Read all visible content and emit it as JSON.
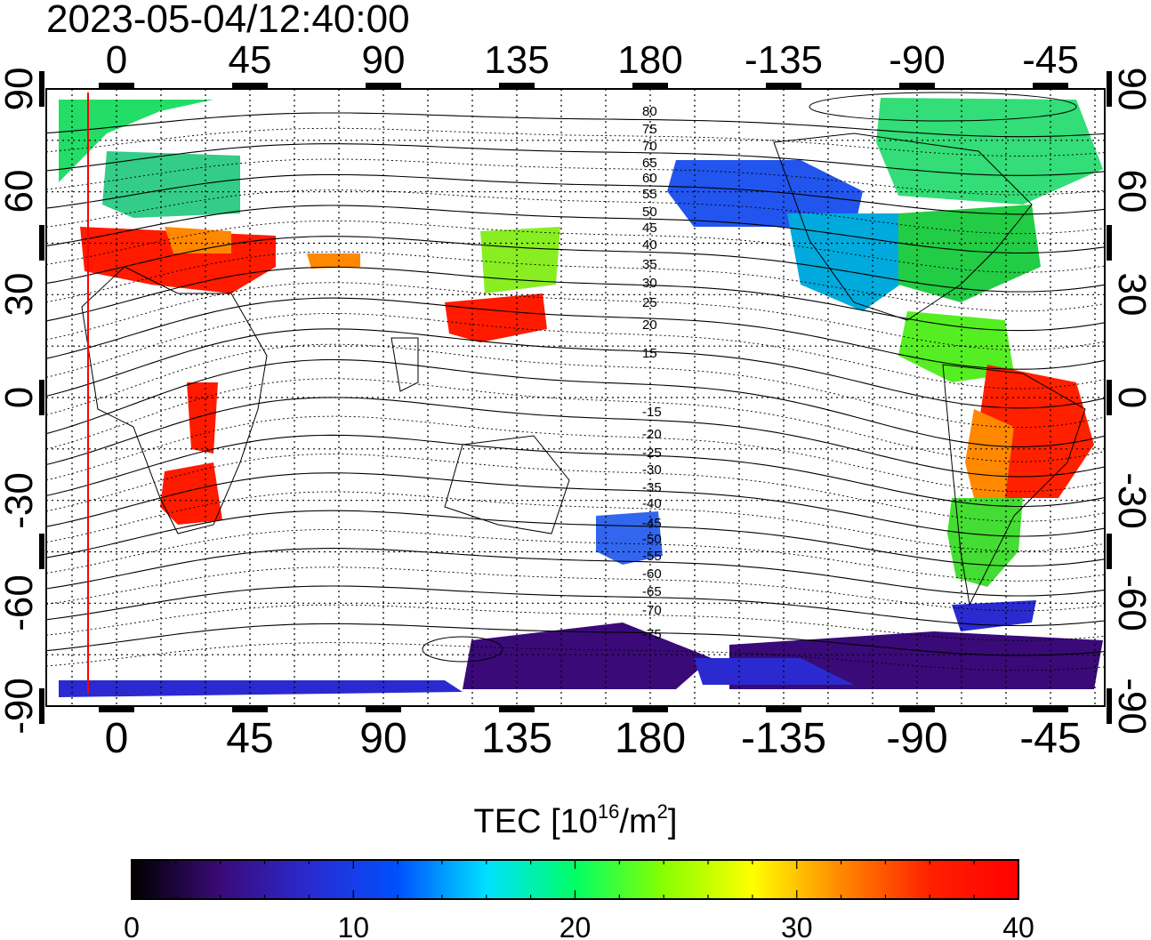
{
  "title": "2023-05-04/12:40:00",
  "map": {
    "projection": "equirectangular",
    "lon_range_label": "0 .. 360 (shown as -45 on right)",
    "lon_ticks_top": [
      "0",
      "45",
      "90",
      "135",
      "180",
      "-135",
      "-90",
      "-45"
    ],
    "lon_ticks_bottom": [
      "0",
      "45",
      "90",
      "135",
      "180",
      "-135",
      "-90",
      "-45"
    ],
    "lat_ticks_left": [
      "90",
      "60",
      "30",
      "0",
      "-30",
      "-60",
      "-90"
    ],
    "lat_ticks_right": [
      "90",
      "60",
      "30",
      "0",
      "-30",
      "-60",
      "-90"
    ],
    "magnetic_lat_labels_north": [
      "80",
      "75",
      "70",
      "65",
      "60",
      "55",
      "50",
      "45",
      "40",
      "35",
      "30",
      "25",
      "20",
      "15"
    ],
    "magnetic_lat_labels_south": [
      "-15",
      "-20",
      "-25",
      "-30",
      "-35",
      "-40",
      "-45",
      "-50",
      "-55",
      "-60",
      "-65",
      "-70",
      "-75"
    ],
    "grid": true
  },
  "colorbar": {
    "title_main": "TEC  [10",
    "title_sup1": "16",
    "title_mid": "/m",
    "title_sup2": "2",
    "title_end": "]",
    "min": 0,
    "max": 40,
    "tick_labels": [
      "0",
      "10",
      "20",
      "30",
      "40"
    ],
    "colormap": [
      "#000000",
      "#3a0a78",
      "#2a2ad0",
      "#0050ff",
      "#00e0ff",
      "#00ff66",
      "#88ff00",
      "#ffff00",
      "#ff8800",
      "#ff2000",
      "#ff0000"
    ]
  },
  "colors": {
    "red_meridian": "#ff0000",
    "tec_low": "#3a0a78",
    "tec_high": "#ff1a00"
  }
}
